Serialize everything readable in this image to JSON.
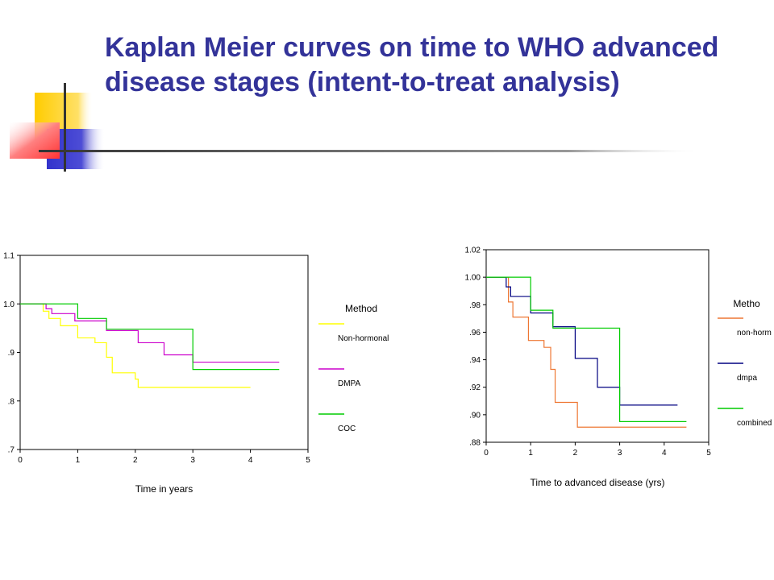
{
  "slide": {
    "title": "Kaplan Meier curves on time to WHO advanced disease stages (intent-to-treat analysis)"
  },
  "colors": {
    "title": "#333399",
    "yellow_block": "#FFCC00",
    "blue_block": "#3333CC",
    "red_block": "#FF3333",
    "rule_line": "#333333"
  },
  "chart_data": [
    {
      "type": "line",
      "step": true,
      "xlabel": "Time in years",
      "xlim": [
        0,
        5
      ],
      "xticks": [
        0,
        1,
        2,
        3,
        4,
        5
      ],
      "xtick_labels": [
        "0",
        "1",
        "2",
        "3",
        "4",
        "5"
      ],
      "ylim": [
        0.7,
        1.1
      ],
      "yticks": [
        0.7,
        0.8,
        0.9,
        1.0,
        1.1
      ],
      "ytick_labels": [
        ".7",
        ".8",
        ".9",
        "1.0",
        "1.1"
      ],
      "grid": false,
      "legend_title": "Method",
      "legend_position": "right",
      "series": [
        {
          "name": "Non-hormonal",
          "color": "#FFFF00",
          "x": [
            0,
            0.4,
            0.5,
            0.7,
            1.0,
            1.3,
            1.5,
            1.6,
            2.0,
            2.05,
            4.0
          ],
          "y": [
            1.0,
            0.985,
            0.97,
            0.955,
            0.93,
            0.92,
            0.89,
            0.858,
            0.845,
            0.828,
            0.828
          ]
        },
        {
          "name": "DMPA",
          "color": "#CC00CC",
          "x": [
            0,
            0.45,
            0.55,
            0.95,
            1.5,
            2.05,
            2.5,
            3.0,
            4.5
          ],
          "y": [
            1.0,
            0.99,
            0.98,
            0.965,
            0.945,
            0.92,
            0.895,
            0.88,
            0.88
          ]
        },
        {
          "name": "COC",
          "color": "#00CC00",
          "x": [
            0,
            1.0,
            1.5,
            3.0,
            4.5
          ],
          "y": [
            1.0,
            0.97,
            0.948,
            0.865,
            0.865
          ]
        }
      ]
    },
    {
      "type": "line",
      "step": true,
      "xlabel": "Time to advanced disease (yrs)",
      "xlim": [
        0,
        5
      ],
      "xticks": [
        0,
        1,
        2,
        3,
        4,
        5
      ],
      "xtick_labels": [
        "0",
        "1",
        "2",
        "3",
        "4",
        "5"
      ],
      "ylim": [
        0.88,
        1.02
      ],
      "yticks": [
        0.88,
        0.9,
        0.92,
        0.94,
        0.96,
        0.98,
        1.0,
        1.02
      ],
      "ytick_labels": [
        ".88",
        ".90",
        ".92",
        ".94",
        ".96",
        ".98",
        "1.00",
        "1.02"
      ],
      "grid": false,
      "legend_title": "Metho",
      "legend_position": "right",
      "series": [
        {
          "name": "non-horm",
          "color": "#EE7733",
          "x": [
            0,
            0.5,
            0.6,
            0.95,
            1.3,
            1.45,
            1.55,
            2.05,
            4.5
          ],
          "y": [
            1.0,
            0.982,
            0.971,
            0.954,
            0.949,
            0.933,
            0.909,
            0.891,
            0.891
          ]
        },
        {
          "name": "dmpa",
          "color": "#000080",
          "x": [
            0,
            0.45,
            0.55,
            1.0,
            1.5,
            2.0,
            2.5,
            3.0,
            4.3
          ],
          "y": [
            1.0,
            0.993,
            0.986,
            0.974,
            0.964,
            0.941,
            0.92,
            0.907,
            0.907
          ]
        },
        {
          "name": "combined",
          "color": "#00CC00",
          "x": [
            0,
            1.0,
            1.5,
            3.0,
            4.5
          ],
          "y": [
            1.0,
            0.976,
            0.963,
            0.895,
            0.895
          ]
        }
      ]
    }
  ]
}
